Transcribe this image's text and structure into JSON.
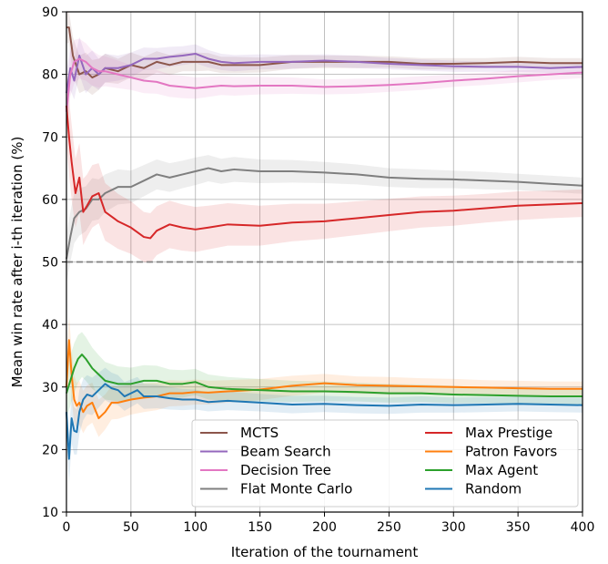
{
  "chart_data": {
    "type": "line",
    "title": "",
    "xlabel": "Iteration of the tournament",
    "ylabel": "Mean win rate after i-th iteration (%)",
    "xlim": [
      0,
      400
    ],
    "ylim": [
      10,
      90
    ],
    "xticks": [
      0,
      50,
      100,
      150,
      200,
      250,
      300,
      350,
      400
    ],
    "yticks": [
      10,
      20,
      30,
      40,
      50,
      60,
      70,
      80,
      90
    ],
    "grid": true,
    "legend_position": "lower right",
    "reference_line": {
      "y": 50,
      "style": "dashed",
      "color": "#808080"
    },
    "series": [
      {
        "name": "MCTS",
        "color": "#8c564b",
        "x": [
          0,
          2,
          5,
          10,
          15,
          20,
          25,
          30,
          40,
          50,
          60,
          70,
          80,
          90,
          100,
          110,
          120,
          130,
          150,
          175,
          200,
          225,
          250,
          275,
          300,
          325,
          350,
          375,
          400
        ],
        "y": [
          87.5,
          87.5,
          83,
          80,
          80.5,
          79.5,
          80,
          81,
          80.5,
          81.5,
          81,
          82,
          81.5,
          82,
          82,
          82,
          81.5,
          81.5,
          81.5,
          82,
          82,
          82,
          82,
          81.7,
          81.7,
          81.8,
          82,
          81.8,
          81.8
        ],
        "band": [
          2.5,
          2.5,
          3,
          3,
          3,
          2.8,
          2.5,
          2.3,
          2,
          2,
          1.8,
          1.7,
          1.6,
          1.5,
          1.5,
          1.4,
          1.3,
          1.3,
          1.2,
          1.1,
          1,
          1,
          0.9,
          0.9,
          0.9,
          0.8,
          0.8,
          0.8,
          0.8
        ]
      },
      {
        "name": "Beam Search",
        "color": "#9467bd",
        "x": [
          0,
          3,
          6,
          10,
          15,
          20,
          25,
          30,
          40,
          50,
          60,
          70,
          80,
          90,
          100,
          110,
          120,
          130,
          150,
          175,
          200,
          225,
          250,
          275,
          300,
          325,
          350,
          375,
          400
        ],
        "y": [
          77,
          81,
          79,
          83,
          80,
          81,
          80,
          81,
          81,
          81.5,
          82.5,
          82.5,
          82.8,
          83,
          83.3,
          82.5,
          82,
          81.8,
          82,
          82,
          82.2,
          82,
          81.7,
          81.5,
          81.3,
          81.2,
          81.2,
          81,
          81.2
        ],
        "band": [
          3.5,
          3.5,
          3,
          3,
          3,
          2.8,
          2.5,
          2.3,
          2,
          2,
          1.8,
          1.7,
          1.6,
          1.5,
          1.5,
          1.4,
          1.3,
          1.3,
          1.2,
          1.1,
          1,
          1,
          0.9,
          0.9,
          0.9,
          0.8,
          0.8,
          0.8,
          0.8
        ]
      },
      {
        "name": "Decision Tree",
        "color": "#e377c2",
        "x": [
          0,
          3,
          6,
          10,
          15,
          20,
          25,
          30,
          40,
          50,
          60,
          70,
          80,
          90,
          100,
          110,
          120,
          130,
          150,
          175,
          200,
          225,
          250,
          275,
          300,
          325,
          350,
          375,
          400
        ],
        "y": [
          74,
          80,
          82,
          82.5,
          82,
          81,
          80.5,
          80.5,
          80,
          79.5,
          79,
          78.8,
          78.2,
          78,
          77.8,
          78,
          78.2,
          78.1,
          78.2,
          78.2,
          78,
          78.1,
          78.3,
          78.6,
          79,
          79.3,
          79.7,
          80,
          80.3
        ],
        "band": [
          3.5,
          3.5,
          3.5,
          3.2,
          3,
          2.8,
          2.6,
          2.4,
          2.2,
          2,
          2,
          1.9,
          1.8,
          1.8,
          1.7,
          1.6,
          1.5,
          1.5,
          1.4,
          1.3,
          1.2,
          1.2,
          1.1,
          1.1,
          1,
          1,
          1,
          0.9,
          0.9
        ],
        "points": 29
      },
      {
        "name": "Flat Monte Carlo",
        "color": "#7f7f7f",
        "x": [
          0,
          3,
          6,
          10,
          15,
          20,
          25,
          30,
          40,
          50,
          60,
          70,
          80,
          90,
          100,
          110,
          120,
          130,
          150,
          175,
          200,
          225,
          250,
          275,
          300,
          325,
          350,
          375,
          400
        ],
        "y": [
          50.5,
          54,
          57,
          58,
          58.5,
          60,
          60,
          61,
          62,
          62,
          63,
          64,
          63.5,
          64,
          64.5,
          65,
          64.5,
          64.8,
          64.5,
          64.5,
          64.3,
          64,
          63.5,
          63.3,
          63.2,
          63,
          62.8,
          62.5,
          62.2
        ],
        "band": [
          4,
          4,
          4,
          3.8,
          3.6,
          3.4,
          3.2,
          3,
          2.8,
          2.6,
          2.5,
          2.4,
          2.3,
          2.2,
          2.2,
          2.1,
          2,
          2,
          1.9,
          1.8,
          1.7,
          1.6,
          1.5,
          1.5,
          1.4,
          1.4,
          1.3,
          1.3,
          1.3
        ]
      },
      {
        "name": "Max Prestige",
        "color": "#d62728",
        "x": [
          0,
          2,
          4,
          7,
          10,
          13,
          16,
          20,
          25,
          30,
          40,
          50,
          60,
          65,
          70,
          80,
          90,
          100,
          110,
          125,
          150,
          175,
          200,
          225,
          250,
          275,
          300,
          325,
          350,
          375,
          400
        ],
        "y": [
          75,
          70,
          66,
          61,
          63.5,
          58,
          59,
          60.5,
          61,
          58,
          56.5,
          55.5,
          54,
          53.8,
          55,
          56,
          55.5,
          55.2,
          55.5,
          56,
          55.8,
          56.3,
          56.5,
          57,
          57.5,
          58,
          58.2,
          58.6,
          59,
          59.2,
          59.4
        ],
        "band": [
          6,
          6,
          6,
          5.5,
          5.5,
          5.3,
          5,
          5,
          4.8,
          4.6,
          4.4,
          4.2,
          4,
          4,
          3.9,
          3.8,
          3.7,
          3.6,
          3.5,
          3.4,
          3.2,
          3,
          2.8,
          2.7,
          2.6,
          2.5,
          2.4,
          2.3,
          2.3,
          2.2,
          2.2
        ]
      },
      {
        "name": "Patron Favors",
        "color": "#ff7f0e",
        "x": [
          0,
          2,
          4,
          6,
          8,
          10,
          13,
          16,
          20,
          25,
          30,
          35,
          40,
          50,
          60,
          70,
          80,
          90,
          100,
          110,
          125,
          150,
          175,
          200,
          225,
          250,
          275,
          300,
          325,
          350,
          375,
          400
        ],
        "y": [
          30,
          37.5,
          32,
          28,
          27,
          27.5,
          26,
          27,
          27.5,
          25,
          26,
          27.5,
          27.5,
          28,
          28.3,
          28.5,
          29,
          29,
          29.2,
          29.1,
          29.3,
          29.6,
          30.2,
          30.6,
          30.3,
          30.2,
          30.1,
          30,
          29.9,
          29.8,
          29.7,
          29.7
        ],
        "band": [
          4,
          4,
          4,
          3.8,
          3.6,
          3.5,
          3.4,
          3.3,
          3.2,
          3,
          2.8,
          2.7,
          2.6,
          2.4,
          2.3,
          2.2,
          2.1,
          2,
          2,
          1.9,
          1.8,
          1.7,
          1.6,
          1.5,
          1.4,
          1.4,
          1.3,
          1.3,
          1.2,
          1.2,
          1.2,
          1.2
        ]
      },
      {
        "name": "Max Agent",
        "color": "#2ca02c",
        "x": [
          0,
          3,
          6,
          9,
          12,
          15,
          20,
          25,
          30,
          40,
          50,
          60,
          70,
          80,
          90,
          100,
          110,
          125,
          150,
          175,
          200,
          225,
          250,
          275,
          300,
          325,
          350,
          375,
          400
        ],
        "y": [
          29,
          31,
          33,
          34.5,
          35.2,
          34.5,
          33,
          32,
          31,
          30.5,
          30.5,
          31,
          31,
          30.5,
          30.5,
          30.8,
          30,
          29.7,
          29.5,
          29.3,
          29.3,
          29.2,
          29,
          29,
          28.8,
          28.7,
          28.6,
          28.5,
          28.5
        ],
        "band": [
          4,
          4,
          4,
          3.8,
          3.6,
          3.5,
          3.3,
          3.1,
          3,
          2.8,
          2.6,
          2.5,
          2.4,
          2.3,
          2.2,
          2.1,
          2,
          1.9,
          1.8,
          1.7,
          1.6,
          1.5,
          1.5,
          1.4,
          1.4,
          1.3,
          1.3,
          1.3,
          1.3
        ]
      },
      {
        "name": "Random",
        "color": "#1f77b4",
        "x": [
          0,
          2,
          4,
          6,
          8,
          10,
          13,
          16,
          20,
          25,
          30,
          35,
          40,
          45,
          50,
          55,
          60,
          70,
          80,
          90,
          100,
          110,
          125,
          150,
          175,
          200,
          225,
          250,
          275,
          300,
          325,
          350,
          375,
          400
        ],
        "y": [
          26,
          18.5,
          25,
          23,
          22.8,
          26,
          28,
          28.8,
          28.5,
          29.5,
          30.5,
          29.8,
          29.5,
          28.5,
          29,
          29.5,
          28.5,
          28.5,
          28.2,
          28,
          28,
          27.6,
          27.8,
          27.5,
          27.2,
          27.3,
          27.1,
          27,
          27.2,
          27.1,
          27.2,
          27.3,
          27.2,
          27.1
        ],
        "band": [
          4,
          4,
          4,
          3.8,
          3.6,
          3.5,
          3.3,
          3.1,
          3,
          2.8,
          2.6,
          2.5,
          2.4,
          2.3,
          2.2,
          2.1,
          2,
          1.9,
          1.8,
          1.7,
          1.6,
          1.5,
          1.5,
          1.4,
          1.4,
          1.3,
          1.3,
          1.3,
          1.3,
          1.2,
          1.2,
          1.2,
          1.2,
          1.2
        ]
      }
    ],
    "legend_columns": [
      [
        "MCTS",
        "Beam Search",
        "Decision Tree",
        "Flat Monte Carlo"
      ],
      [
        "Max Prestige",
        "Patron Favors",
        "Max Agent",
        "Random"
      ]
    ]
  }
}
